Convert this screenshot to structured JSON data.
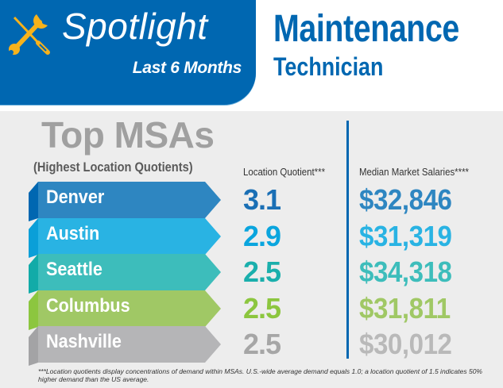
{
  "header": {
    "badge": "Spotlight",
    "period": "Last 6 Months",
    "job_title_line1": "Maintenance",
    "job_title_line2": "Technician",
    "icon": "wrench-screwdriver-icon",
    "colors": {
      "brand_blue": "#0067b1",
      "icon_yellow": "#f7b21b"
    }
  },
  "section": {
    "title": "Top MSAs",
    "subtitle": "(Highest Location Quotients)",
    "col_lq": "Location Quotient***",
    "col_salary": "Median Market Salaries****"
  },
  "rows": [
    {
      "city": "Denver",
      "lq": "3.1",
      "salary": "$32,846",
      "color": "#2e86c1",
      "side": "#0067b1",
      "lq_color": "#1a6fb5",
      "sal_color": "#2e86c1"
    },
    {
      "city": "Austin",
      "lq": "2.9",
      "salary": "$31,319",
      "color": "#29b3e3",
      "side": "#0a9fd8",
      "lq_color": "#0aa5de",
      "sal_color": "#29b3e3"
    },
    {
      "city": "Seattle",
      "lq": "2.5",
      "salary": "$34,318",
      "color": "#3dbdbb",
      "side": "#12aba8",
      "lq_color": "#1aafac",
      "sal_color": "#3dbdbb"
    },
    {
      "city": "Columbus",
      "lq": "2.5",
      "salary": "$31,811",
      "color": "#a0c865",
      "side": "#8cc63f",
      "lq_color": "#8cc63f",
      "sal_color": "#a0c865"
    },
    {
      "city": "Nashville",
      "lq": "2.5",
      "salary": "$30,012",
      "color": "#b5b5b7",
      "side": "#a3a3a5",
      "lq_color": "#a6a6a6",
      "sal_color": "#b9b9b9"
    }
  ],
  "footnote": "***Location quotients display concentrations of demand within MSAs. U.S.-wide average demand equals 1.0; a location quotient of 1.5 indicates 50% higher demand than the US average."
}
